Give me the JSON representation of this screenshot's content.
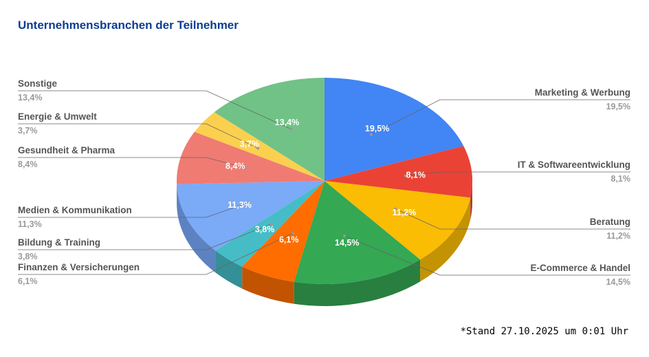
{
  "chart_data": {
    "type": "pie",
    "title": "Unternehmensbranchen der Teilnehmer",
    "slices": [
      {
        "label": "Marketing & Werbung",
        "value": 19.5,
        "display": "19,5%",
        "color": "#4285f4",
        "side_color": "#3367c9"
      },
      {
        "label": "IT & Softwareentwicklung",
        "value": 8.1,
        "display": "8,1%",
        "color": "#ea4335",
        "side_color": "#b5342a"
      },
      {
        "label": "Beratung",
        "value": 11.2,
        "display": "11,2%",
        "color": "#fbbc04",
        "side_color": "#c49303"
      },
      {
        "label": "E-Commerce & Handel",
        "value": 14.5,
        "display": "14,5%",
        "color": "#34a853",
        "side_color": "#287f3f"
      },
      {
        "label": "Finanzen & Versicherungen",
        "value": 6.1,
        "display": "6,1%",
        "color": "#ff6d01",
        "side_color": "#c25301"
      },
      {
        "label": "Bildung & Training",
        "value": 3.8,
        "display": "3,8%",
        "color": "#46bdc6",
        "side_color": "#358f96"
      },
      {
        "label": "Medien & Kommunikation",
        "value": 11.3,
        "display": "11,3%",
        "color": "#7baaf7",
        "side_color": "#5c82c2"
      },
      {
        "label": "Gesundheit & Pharma",
        "value": 8.4,
        "display": "8,4%",
        "color": "#f07b72",
        "side_color": "#b85d56"
      },
      {
        "label": "Energie & Umwelt",
        "value": 3.7,
        "display": "3,7%",
        "color": "#fcd04f",
        "side_color": "#c4a13d"
      },
      {
        "label": "Sonstige",
        "value": 13.4,
        "display": "13,4%",
        "color": "#71c287",
        "side_color": "#579667"
      }
    ],
    "legend": "outside-labels"
  },
  "footnote": "*Stand 27.10.2025 um 0:01 Uhr"
}
